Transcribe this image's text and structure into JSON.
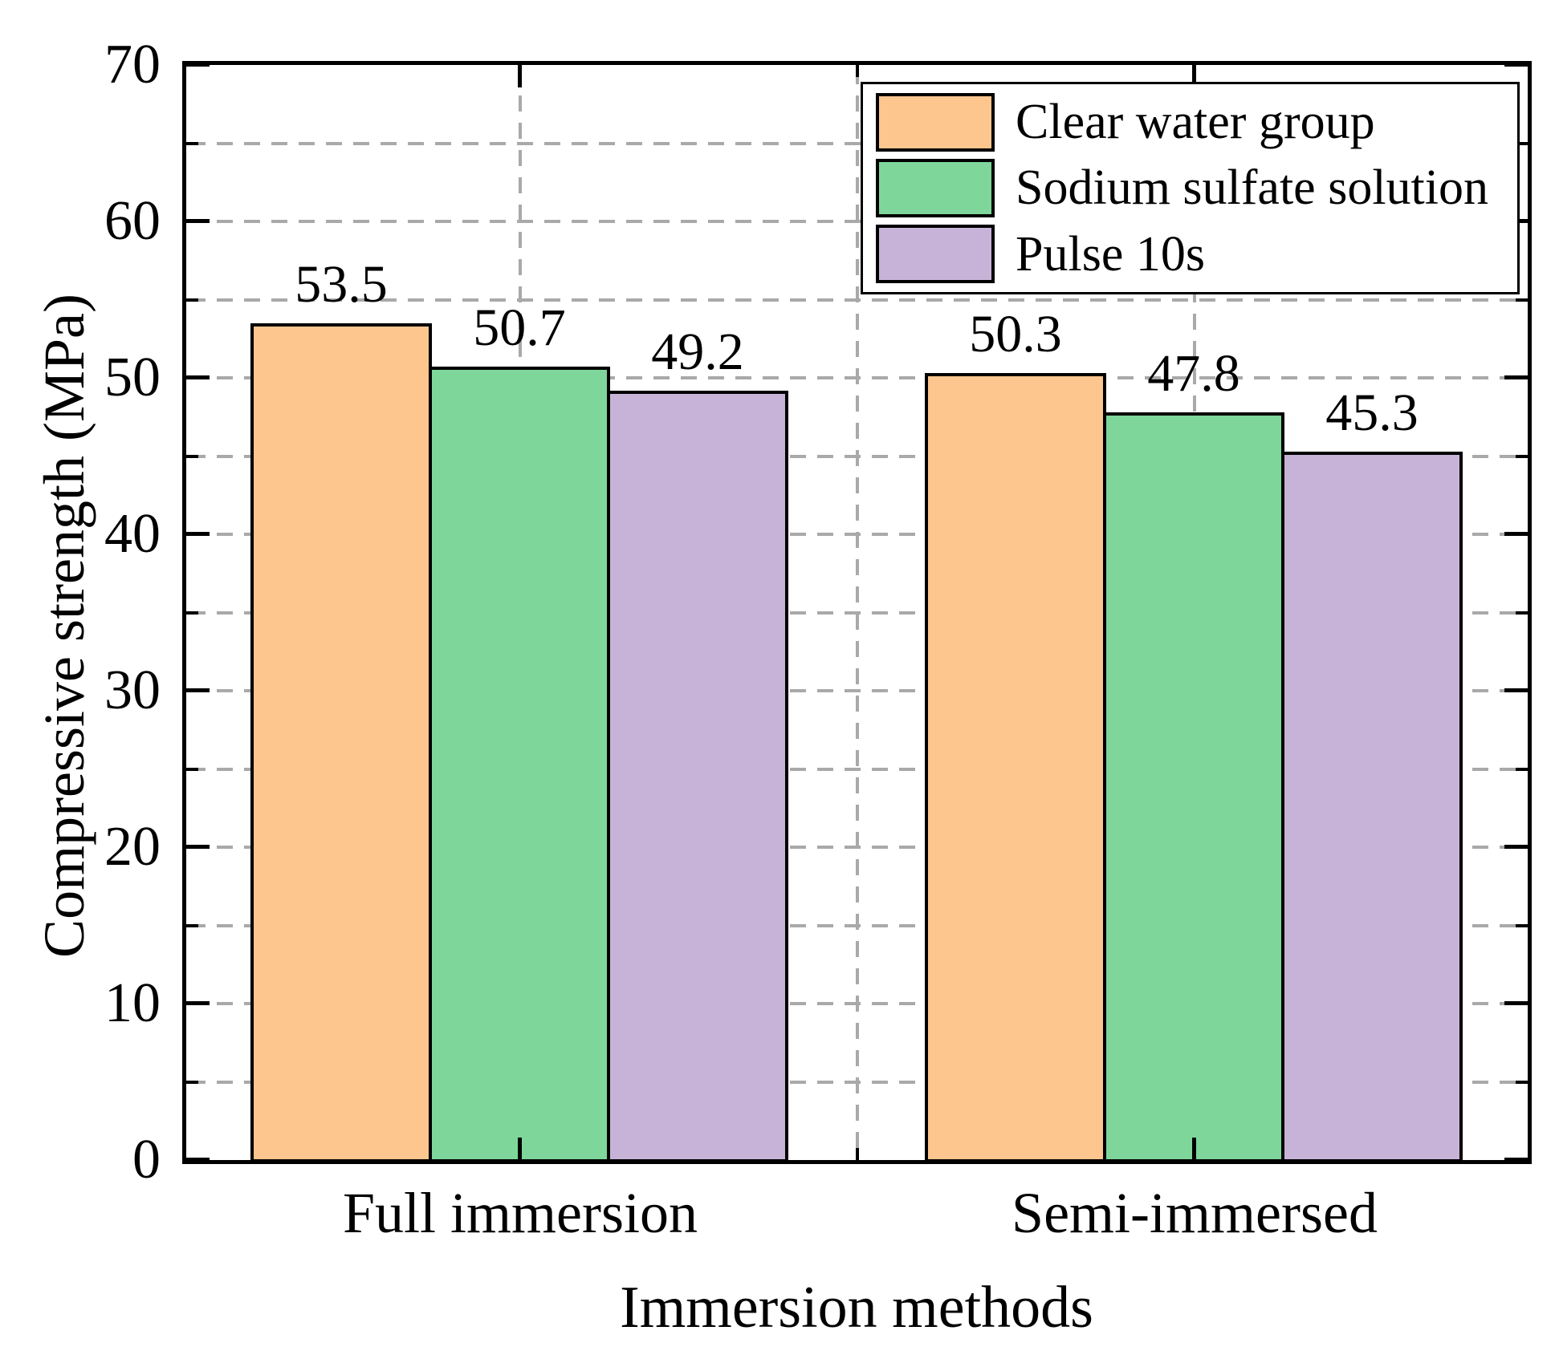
{
  "chart_data": {
    "type": "bar",
    "title": "",
    "categories": [
      "Full immersion",
      "Semi-immersed"
    ],
    "series": [
      {
        "name": "Clear water group",
        "color": "#FDC68E",
        "values": [
          53.5,
          50.3
        ]
      },
      {
        "name": "Sodium sulfate solution",
        "color": "#7ED69B",
        "values": [
          50.7,
          47.8
        ]
      },
      {
        "name": "Pulse 10s",
        "color": "#C7B3D7",
        "values": [
          49.2,
          45.3
        ]
      }
    ],
    "xlabel": "Immersion methods",
    "ylabel": "Compressive strength (MPa)",
    "ylim": [
      0,
      70
    ],
    "ytick_step": 10,
    "yminor_step": 5,
    "ytick_labels": [
      "0",
      "10",
      "20",
      "30",
      "40",
      "50",
      "60",
      "70"
    ],
    "bar_value_label_format": "one-decimal",
    "grid": "dashed",
    "grid_color": "#A9A9A9",
    "bar_edge_color": "#000000",
    "legend_position": "top-right",
    "legend_items": [
      "Clear water group",
      "Sodium sulfate solution",
      "Pulse 10s"
    ]
  }
}
